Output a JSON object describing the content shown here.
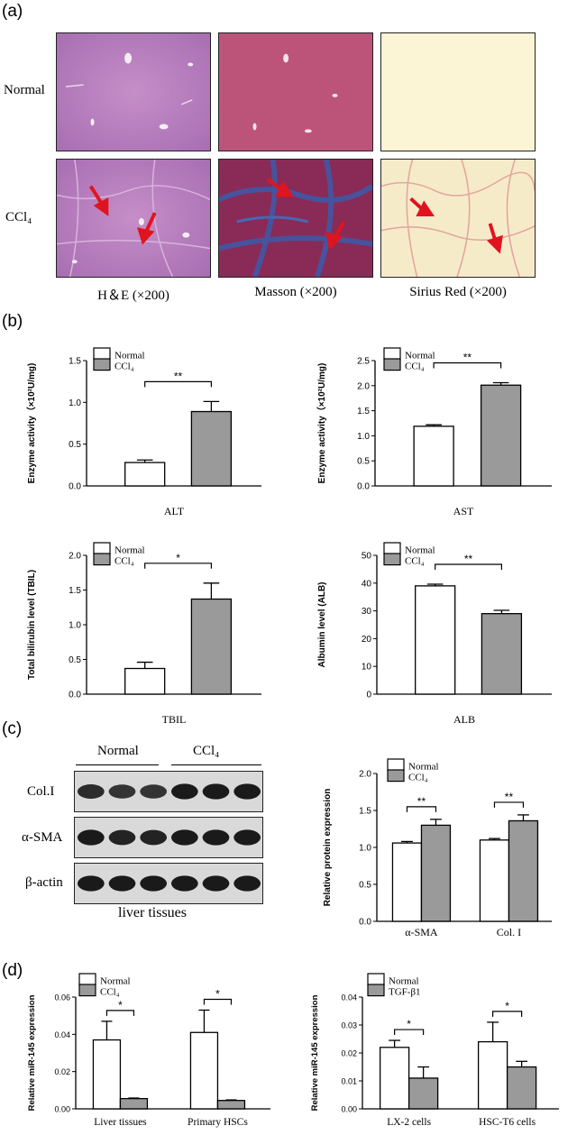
{
  "panels": {
    "a": {
      "label": "(a)"
    },
    "b": {
      "label": "(b)"
    },
    "c": {
      "label": "(c)"
    },
    "d": {
      "label": "(d)"
    }
  },
  "histology": {
    "rows": [
      "Normal",
      "CCl₄"
    ],
    "columns": [
      "H＆E (×200)",
      "Masson (×200)",
      "Sirius Red (×200)"
    ]
  },
  "western_blot": {
    "groups": [
      "Normal",
      "CCl₄"
    ],
    "bands": [
      "Col.I",
      "α-SMA",
      "β-actin"
    ],
    "caption": "liver tissues"
  },
  "colors": {
    "normal_fill": "#ffffff",
    "treated_fill": "#9a9a9a",
    "arrow": "#e0141e"
  },
  "chart_data": [
    {
      "id": "alt",
      "type": "bar",
      "categories": [
        "ALT"
      ],
      "series": [
        {
          "name": "Normal",
          "values": [
            0.28
          ],
          "errors": [
            0.03
          ]
        },
        {
          "name": "CCl₄",
          "values": [
            0.89
          ],
          "errors": [
            0.12
          ]
        }
      ],
      "ylabel": "Enzyme activity（×10²U/mg)",
      "ylim": [
        0,
        1.5
      ],
      "yticks": [
        "0.0",
        "0.5",
        "1.0",
        "1.5"
      ],
      "significance": "**",
      "legend": "top-left"
    },
    {
      "id": "ast",
      "type": "bar",
      "categories": [
        "AST"
      ],
      "series": [
        {
          "name": "Normal",
          "values": [
            1.19
          ],
          "errors": [
            0.03
          ]
        },
        {
          "name": "CCl₄",
          "values": [
            2.01
          ],
          "errors": [
            0.05
          ]
        }
      ],
      "ylabel": "Enzyme activity（×10²U/mg)",
      "ylim": [
        0,
        2.5
      ],
      "yticks": [
        "0.0",
        "0.5",
        "1.0",
        "1.5",
        "2.0",
        "2.5"
      ],
      "significance": "**",
      "legend": "top-left"
    },
    {
      "id": "tbil",
      "type": "bar",
      "categories": [
        "TBIL"
      ],
      "series": [
        {
          "name": "Normal",
          "values": [
            0.37
          ],
          "errors": [
            0.09
          ]
        },
        {
          "name": "CCl₄",
          "values": [
            1.37
          ],
          "errors": [
            0.23
          ]
        }
      ],
      "ylabel": "Total bilirubin level (TBIL)",
      "ylim": [
        0,
        2.0
      ],
      "yticks": [
        "0.0",
        "0.5",
        "1.0",
        "1.5",
        "2.0"
      ],
      "significance": "*",
      "legend": "top-left"
    },
    {
      "id": "alb",
      "type": "bar",
      "categories": [
        "ALB"
      ],
      "series": [
        {
          "name": "Normal",
          "values": [
            39
          ],
          "errors": [
            0.6
          ]
        },
        {
          "name": "CCl₄",
          "values": [
            29
          ],
          "errors": [
            1.2
          ]
        }
      ],
      "ylabel": "Albumin level (ALB)",
      "ylim": [
        0,
        50
      ],
      "yticks": [
        "0",
        "10",
        "20",
        "30",
        "40",
        "50"
      ],
      "significance": "**",
      "legend": "top-left"
    },
    {
      "id": "protein",
      "type": "bar",
      "categories": [
        "α-SMA",
        "Col. I"
      ],
      "series": [
        {
          "name": "Normal",
          "values": [
            1.06,
            1.1
          ],
          "errors": [
            0.02,
            0.02
          ]
        },
        {
          "name": "CCl₄",
          "values": [
            1.3,
            1.36
          ],
          "errors": [
            0.08,
            0.08
          ]
        }
      ],
      "ylabel": "Relative protein expression",
      "ylim": [
        0,
        2.0
      ],
      "yticks": [
        "0.0",
        "0.5",
        "1.0",
        "1.5",
        "2.0"
      ],
      "significance": [
        "**",
        "**"
      ],
      "legend": "top-left"
    },
    {
      "id": "mir_tissue",
      "type": "bar",
      "categories": [
        "Liver tissues",
        "Primary HSCs"
      ],
      "series": [
        {
          "name": "Normal",
          "values": [
            0.037,
            0.041
          ],
          "errors": [
            0.01,
            0.012
          ]
        },
        {
          "name": "CCl₄",
          "values": [
            0.0055,
            0.0045
          ],
          "errors": [
            0.0003,
            0.0003
          ]
        }
      ],
      "ylabel": "Relative miR-145 expression",
      "ylim": [
        0,
        0.06
      ],
      "yticks": [
        "0.00",
        "0.02",
        "0.04",
        "0.06"
      ],
      "significance": [
        "*",
        "*"
      ],
      "legend": "top-left"
    },
    {
      "id": "mir_cells",
      "type": "bar",
      "categories": [
        "LX-2 cells",
        "HSC-T6 cells"
      ],
      "series": [
        {
          "name": "Normal",
          "values": [
            0.022,
            0.024
          ],
          "errors": [
            0.0025,
            0.007
          ]
        },
        {
          "name": "TGF-β1",
          "values": [
            0.011,
            0.015
          ],
          "errors": [
            0.004,
            0.002
          ]
        }
      ],
      "ylabel": "Relative miR-145 expression",
      "ylim": [
        0,
        0.04
      ],
      "yticks": [
        "0.00",
        "0.01",
        "0.02",
        "0.03",
        "0.04"
      ],
      "significance": [
        "*",
        "*"
      ],
      "legend": "top-left"
    }
  ]
}
